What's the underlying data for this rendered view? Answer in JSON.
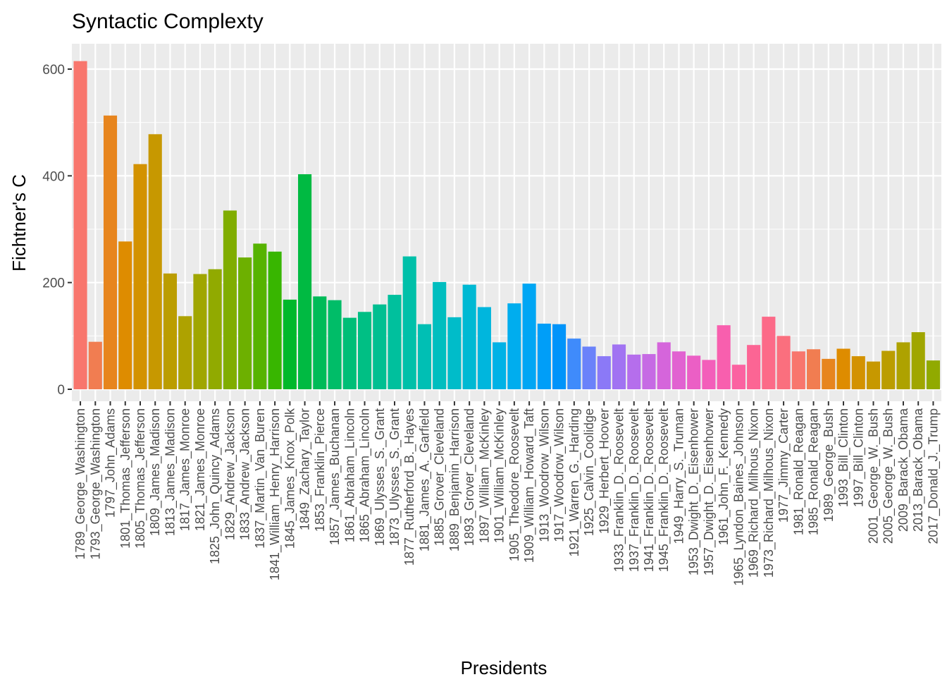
{
  "chart_data": {
    "type": "bar",
    "title": "Syntactic Complexty",
    "xlabel": "Presidents",
    "ylabel": "Fichtner's C",
    "ylim": [
      0,
      650
    ],
    "yticks": [
      0,
      200,
      400,
      600
    ],
    "grid": true,
    "legend": "none",
    "background_color": "#EBEBEB",
    "categories": [
      "1789_George_Washington",
      "1793_George_Washington",
      "1797_John_Adams",
      "1801_Thomas_Jefferson",
      "1805_Thomas_Jefferson",
      "1809_James_Madison",
      "1813_James_Madison",
      "1817_James_Monroe",
      "1821_James_Monroe",
      "1825_John_Quincy_Adams",
      "1829_Andrew_Jackson",
      "1833_Andrew_Jackson",
      "1837_Martin_Van_Buren",
      "1841_William_Henry_Harrison",
      "1845_James_Knox_Polk",
      "1849_Zachary_Taylor",
      "1853_Franklin_Pierce",
      "1857_James_Buchanan",
      "1861_Abraham_Lincoln",
      "1865_Abraham_Lincoln",
      "1869_Ulysses_S._Grant",
      "1873_Ulysses_S._Grant",
      "1877_Rutherford_B._Hayes",
      "1881_James_A._Garfield",
      "1885_Grover_Cleveland",
      "1889_Benjamin_Harrison",
      "1893_Grover_Cleveland",
      "1897_William_McKinley",
      "1901_William_McKinley",
      "1905_Theodore_Roosevelt",
      "1909_William_Howard_Taft",
      "1913_Woodrow_Wilson",
      "1917_Woodrow_Wilson",
      "1921_Warren_G._Harding",
      "1925_Calvin_Coolidge",
      "1929_Herbert_Hoover",
      "1933_Franklin_D._Roosevelt",
      "1937_Franklin_D._Roosevelt",
      "1941_Franklin_D._Roosevelt",
      "1945_Franklin_D._Roosevelt",
      "1949_Harry_S._Truman",
      "1953_Dwight_D._Eisenhower",
      "1957_Dwight_D._Eisenhower",
      "1961_John_F._Kennedy",
      "1965_Lyndon_Baines_Johnson",
      "1969_Richard_Milhous_Nixon",
      "1973_Richard_Milhous_Nixon",
      "1977_Jimmy_Carter",
      "1981_Ronald_Reagan",
      "1985_Ronald_Reagan",
      "1989_George_Bush",
      "1993_Bill_Clinton",
      "1997_Bill_Clinton",
      "2001_George_W._Bush",
      "2005_George_W._Bush",
      "2009_Barack_Obama",
      "2013_Barack_Obama",
      "2017_Donald_J._Trump"
    ],
    "values": [
      615,
      89,
      513,
      277,
      422,
      478,
      217,
      137,
      216,
      225,
      335,
      247,
      273,
      258,
      168,
      403,
      174,
      167,
      134,
      145,
      159,
      177,
      249,
      122,
      201,
      135,
      196,
      154,
      88,
      161,
      198,
      123,
      122,
      95,
      80,
      62,
      84,
      65,
      66,
      88,
      71,
      63,
      55,
      120,
      46,
      83,
      136,
      100,
      71,
      75,
      57,
      76,
      62,
      52,
      72,
      88,
      107,
      54
    ],
    "colors": [
      "#F8766D",
      "#F17D51",
      "#E7851E",
      "#DE8C00",
      "#D39200",
      "#C79800",
      "#BB9D00",
      "#AEA200",
      "#A0A600",
      "#91AA00",
      "#80AD00",
      "#6DB000",
      "#56B300",
      "#38B600",
      "#00B82B",
      "#00BA42",
      "#00BB58",
      "#00BD68",
      "#00BE77",
      "#00BF84",
      "#00BF91",
      "#00C09D",
      "#00C0A9",
      "#00BFB4",
      "#00BEBF",
      "#00BCC9",
      "#00B9D3",
      "#00B6DD",
      "#00B2E6",
      "#00ADEE",
      "#00A6F4",
      "#009EF8",
      "#0094FA",
      "#3F8BFB",
      "#6A82FA",
      "#8B79F7",
      "#A173F2",
      "#B56EEC",
      "#C66AE4",
      "#D565DB",
      "#E162D1",
      "#EB5FC5",
      "#F35EBA",
      "#F85FAE",
      "#FB62A1",
      "#FC6594",
      "#FC6A88",
      "#FA6F7E",
      "#F8766D",
      "#F17D51",
      "#E7851E",
      "#DE8C00",
      "#D39200",
      "#C79800",
      "#BB9D00",
      "#AEA200",
      "#A0A600",
      "#91AA00"
    ]
  }
}
